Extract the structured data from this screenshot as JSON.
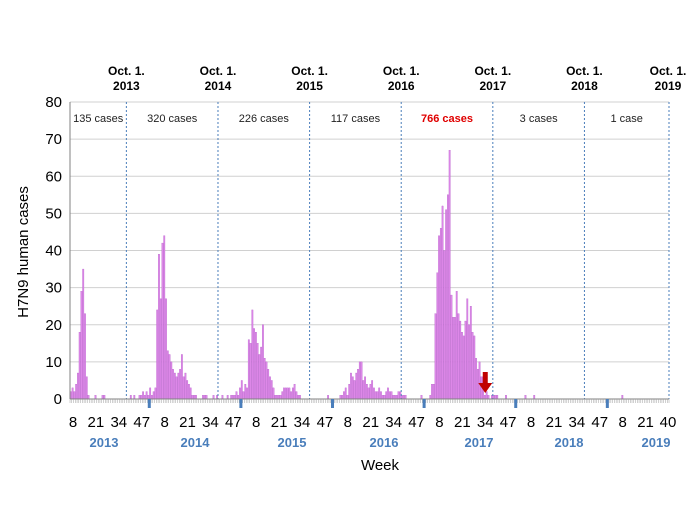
{
  "chart_data": {
    "type": "bar",
    "title": "",
    "xlabel": "Week",
    "ylabel": "H7N9  human cases",
    "ylim": [
      0,
      80
    ],
    "y_ticks": [
      "0",
      "10",
      "20",
      "30",
      "40",
      "50",
      "60",
      "70",
      "80"
    ],
    "x_ticks": [
      "8",
      "21",
      "34",
      "47",
      "8",
      "21",
      "34",
      "47",
      "8",
      "21",
      "34",
      "47",
      "8",
      "21",
      "34",
      "47",
      "8",
      "21",
      "34",
      "47",
      "8",
      "21",
      "34",
      "47",
      "8",
      "21",
      "40"
    ],
    "years": [
      "2013",
      "2014",
      "2015",
      "2016",
      "2017",
      "2018",
      "2019"
    ],
    "season_boundaries": [
      {
        "line1": "Oct. 1.",
        "line2": "2013"
      },
      {
        "line1": "Oct. 1.",
        "line2": "2014"
      },
      {
        "line1": "Oct. 1.",
        "line2": "2015"
      },
      {
        "line1": "Oct. 1.",
        "line2": "2016"
      },
      {
        "line1": "Oct. 1.",
        "line2": "2017"
      },
      {
        "line1": "Oct. 1.",
        "line2": "2018"
      },
      {
        "line1": "Oct. 1.",
        "line2": "2019"
      }
    ],
    "season_totals": [
      {
        "label": "135 cases",
        "highlight": false
      },
      {
        "label": "320 cases",
        "highlight": false
      },
      {
        "label": "226 cases",
        "highlight": false
      },
      {
        "label": "117 cases",
        "highlight": false
      },
      {
        "label": "766 cases",
        "highlight": true
      },
      {
        "label": "3 cases",
        "highlight": false
      },
      {
        "label": "1 case",
        "highlight": false
      }
    ],
    "week_start": "2013 week 8",
    "series": [
      {
        "bar_color": "#dd88e8",
        "values": [
          2,
          3,
          2,
          4,
          7,
          18,
          29,
          35,
          23,
          6,
          1,
          0,
          0,
          0,
          1,
          0,
          0,
          0,
          1,
          1,
          0,
          0,
          0,
          0,
          0,
          0,
          0,
          0,
          0,
          0,
          0,
          0,
          0,
          0,
          1,
          0,
          1,
          0,
          0,
          1,
          1,
          2,
          1,
          2,
          1,
          3,
          1,
          2,
          3,
          24,
          39,
          27,
          42,
          44,
          27,
          13,
          12,
          10,
          8,
          7,
          6,
          7,
          8,
          12,
          6,
          7,
          5,
          4,
          3,
          1,
          1,
          1,
          0,
          0,
          0,
          1,
          1,
          1,
          0,
          0,
          0,
          1,
          0,
          1,
          0,
          0,
          1,
          0,
          0,
          1,
          0,
          1,
          1,
          1,
          2,
          1,
          3,
          5,
          2,
          4,
          3,
          16,
          15,
          24,
          19,
          18,
          15,
          12,
          14,
          20,
          11,
          10,
          8,
          6,
          5,
          3,
          1,
          1,
          1,
          1,
          2,
          3,
          3,
          3,
          3,
          2,
          3,
          4,
          2,
          1,
          1,
          0,
          0,
          0,
          0,
          0,
          0,
          0,
          0,
          0,
          0,
          0,
          0,
          0,
          0,
          0,
          1,
          0,
          0,
          0,
          0,
          0,
          0,
          1,
          1,
          2,
          3,
          1,
          4,
          7,
          6,
          5,
          7,
          8,
          10,
          10,
          5,
          6,
          4,
          3,
          4,
          5,
          3,
          2,
          2,
          3,
          2,
          1,
          1,
          2,
          3,
          2,
          2,
          1,
          1,
          1,
          2,
          2,
          1,
          1,
          1,
          0,
          0,
          0,
          0,
          0,
          0,
          0,
          0,
          1,
          0,
          0,
          0,
          0,
          1,
          4,
          4,
          23,
          34,
          44,
          46,
          52,
          40,
          51,
          55,
          67,
          28,
          22,
          22,
          29,
          23,
          21,
          18,
          17,
          21,
          27,
          20,
          25,
          18,
          17,
          11,
          8,
          10,
          6,
          6,
          1,
          2,
          1,
          0,
          1,
          1,
          1,
          1,
          0,
          0,
          0,
          0,
          1,
          0,
          0,
          0,
          0,
          0,
          0,
          0,
          0,
          0,
          0,
          1,
          0,
          0,
          0,
          0,
          1,
          0,
          0,
          0,
          0,
          0,
          0,
          0,
          0,
          0,
          0,
          0,
          0,
          0,
          0,
          0,
          0,
          0,
          0,
          0,
          0,
          0,
          0,
          0,
          0,
          0,
          0,
          0,
          0,
          0,
          0,
          0,
          0,
          0,
          0,
          0,
          0,
          0,
          0,
          0,
          0,
          0,
          0,
          0,
          0,
          0,
          0,
          0,
          0,
          0,
          1,
          0,
          0,
          0,
          0,
          0,
          0,
          0,
          0,
          0,
          0,
          0,
          0,
          0,
          0,
          0,
          0,
          0,
          0,
          0,
          0,
          0,
          0,
          0,
          0,
          0,
          0
        ]
      }
    ],
    "annotation": {
      "type": "arrow",
      "color": "#c00000",
      "at_week_label": "34",
      "year": "2017"
    },
    "grid": true
  }
}
